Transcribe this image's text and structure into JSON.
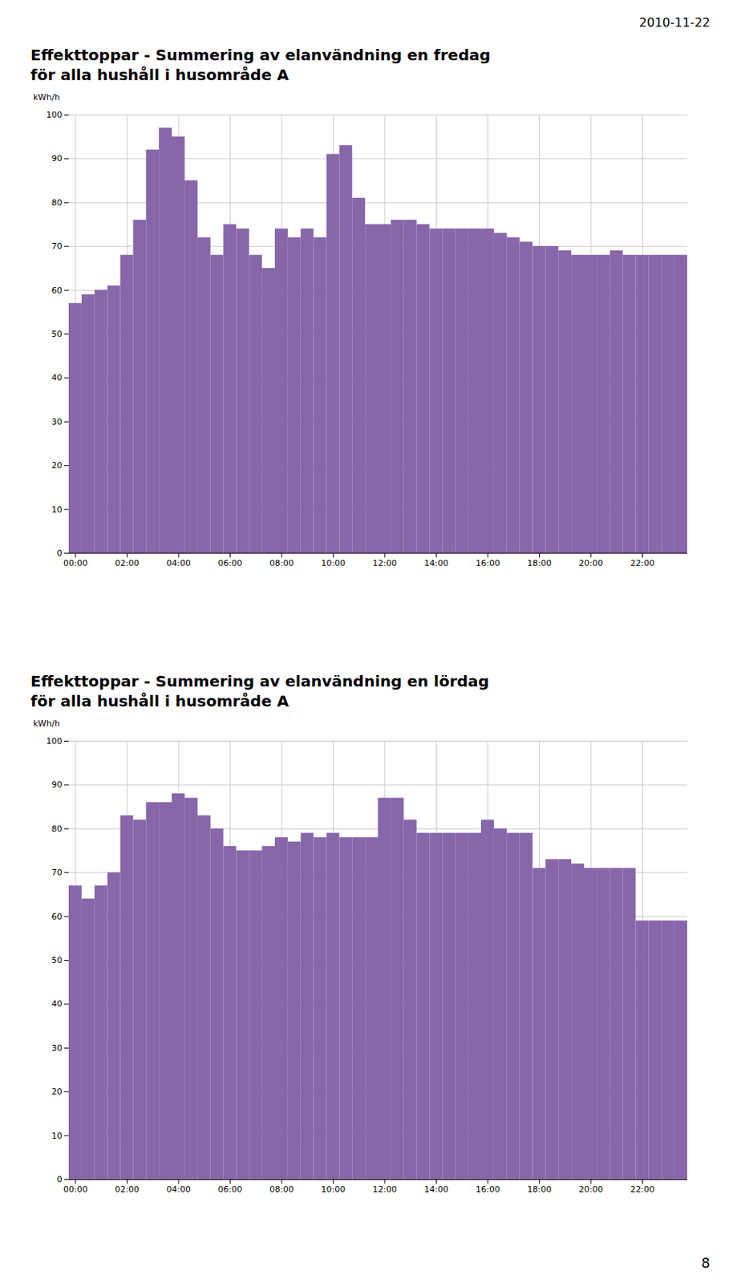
{
  "annotations": [
    "2010-11-22",
    "8"
  ],
  "chart_data": [
    {
      "type": "bar",
      "title": "Effekttoppar - Summering av elanvändning en fredag",
      "subtitle": "för alla hushåll i husområde A",
      "y_label": "kWh/h",
      "categories": [
        "00:00",
        null,
        null,
        null,
        "02:00",
        null,
        null,
        null,
        "04:00",
        null,
        null,
        null,
        "06:00",
        null,
        null,
        null,
        "08:00",
        null,
        null,
        null,
        "10:00",
        null,
        null,
        null,
        "12:00",
        null,
        null,
        null,
        "14:00",
        null,
        null,
        null,
        "16:00",
        null,
        null,
        null,
        "18:00",
        null,
        null,
        null,
        "20:00",
        null,
        null,
        null,
        "22:00",
        null,
        null,
        null
      ],
      "values": [
        57,
        59,
        60,
        61,
        68,
        76,
        92,
        97,
        95,
        85,
        72,
        68,
        75,
        74,
        68,
        65,
        74,
        72,
        74,
        72,
        91,
        93,
        81,
        75,
        75,
        76,
        76,
        75,
        74,
        74,
        74,
        74,
        74,
        73,
        72,
        71,
        70,
        70,
        69,
        68,
        68,
        68,
        69,
        68,
        68,
        68,
        68,
        68
      ],
      "color": "#8866aa",
      "ylim": [
        0,
        100
      ],
      "yticks": [
        0,
        10,
        20,
        30,
        40,
        50,
        60,
        70,
        80,
        90,
        100
      ],
      "grid": true
    },
    {
      "type": "bar",
      "title": "Effekttoppar - Summering av elanvändning en lördag",
      "subtitle": "för alla hushåll i husområde A",
      "y_label": "kWh/h",
      "categories": [
        "00:00",
        null,
        null,
        null,
        "02:00",
        null,
        null,
        null,
        "04:00",
        null,
        null,
        null,
        "06:00",
        null,
        null,
        null,
        "08:00",
        null,
        null,
        null,
        "10:00",
        null,
        null,
        null,
        "12:00",
        null,
        null,
        null,
        "14:00",
        null,
        null,
        null,
        "16:00",
        null,
        null,
        null,
        "18:00",
        null,
        null,
        null,
        "20:00",
        null,
        null,
        null,
        "22:00",
        null,
        null,
        null
      ],
      "values": [
        67,
        64,
        67,
        70,
        83,
        82,
        86,
        86,
        88,
        87,
        83,
        80,
        76,
        75,
        75,
        76,
        78,
        77,
        79,
        78,
        79,
        78,
        78,
        78,
        87,
        87,
        82,
        79,
        79,
        79,
        79,
        79,
        82,
        80,
        79,
        79,
        71,
        73,
        73,
        72,
        71,
        71,
        71,
        71,
        59,
        59,
        59,
        59
      ],
      "color": "#8866aa",
      "ylim": [
        0,
        100
      ],
      "yticks": [
        0,
        10,
        20,
        30,
        40,
        50,
        60,
        70,
        80,
        90,
        100
      ],
      "grid": true
    }
  ]
}
